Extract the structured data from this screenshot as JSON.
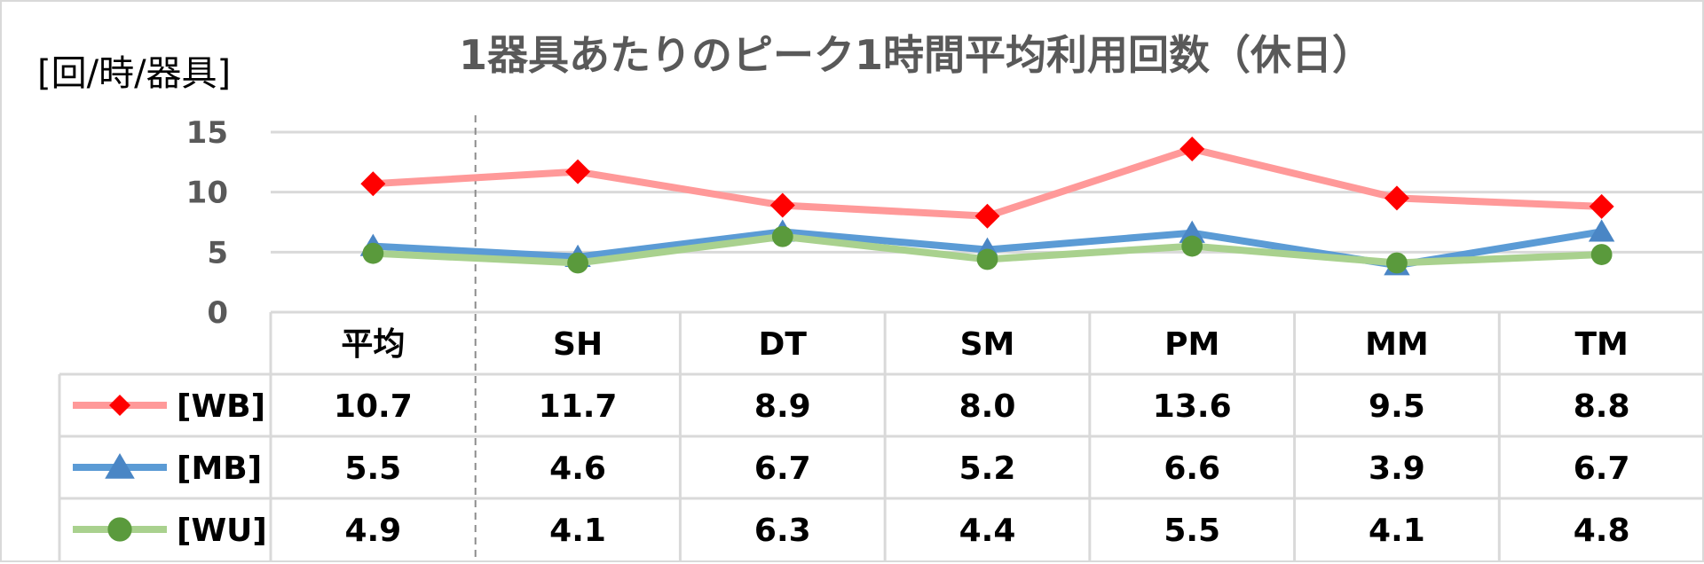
{
  "chart_data": {
    "type": "line",
    "title": "1器具あたりのピーク1時間平均利用回数（休日）",
    "ylabel": "[回/時/器具]",
    "categories": [
      "平均",
      "SH",
      "DT",
      "SM",
      "PM",
      "MM",
      "TM"
    ],
    "ylim": [
      0,
      15
    ],
    "yticks": [
      0,
      5,
      10,
      15
    ],
    "grid": true,
    "legend": "data-table-left",
    "series": [
      {
        "name": "[WB]",
        "values": [
          10.7,
          11.7,
          8.9,
          8.0,
          13.6,
          9.5,
          8.8
        ],
        "labels": [
          "10.7",
          "11.7",
          "8.9",
          "8.0",
          "13.6",
          "9.5",
          "8.8"
        ],
        "color": "#ff9999",
        "marker": "diamond",
        "marker_color": "#ff0000"
      },
      {
        "name": "[MB]",
        "values": [
          5.5,
          4.6,
          6.7,
          5.2,
          6.6,
          3.9,
          6.7
        ],
        "labels": [
          "5.5",
          "4.6",
          "6.7",
          "5.2",
          "6.6",
          "3.9",
          "6.7"
        ],
        "color": "#5b9bd5",
        "marker": "triangle",
        "marker_color": "#4a86c5"
      },
      {
        "name": "[WU]",
        "values": [
          4.9,
          4.1,
          6.3,
          4.4,
          5.5,
          4.1,
          4.8
        ],
        "labels": [
          "4.9",
          "4.1",
          "6.3",
          "4.4",
          "5.5",
          "4.1",
          "4.8"
        ],
        "color": "#a9d18e",
        "marker": "circle",
        "marker_color": "#5a9a3c"
      }
    ]
  }
}
